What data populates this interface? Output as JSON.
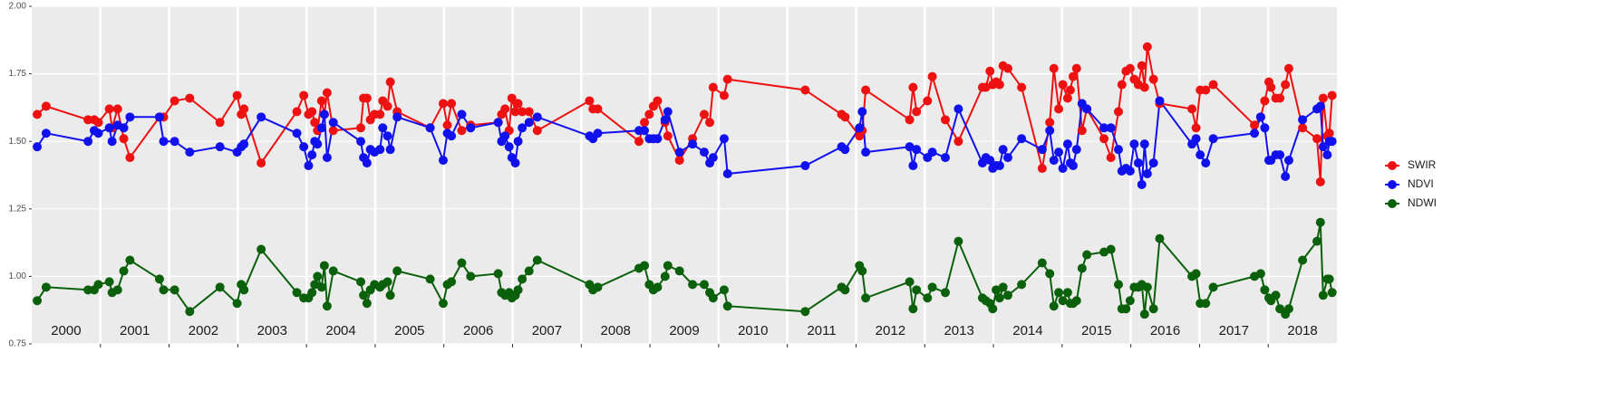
{
  "chart_data": {
    "type": "line",
    "x": [
      2000.08,
      2000.21,
      2000.82,
      2000.91,
      2000.97,
      2001.13,
      2001.17,
      2001.25,
      2001.34,
      2001.43,
      2001.86,
      2001.92,
      2002.08,
      2002.3,
      2002.74,
      2002.99,
      2003.05,
      2003.09,
      2003.34,
      2003.86,
      2003.96,
      2004.03,
      2004.08,
      2004.12,
      2004.16,
      2004.22,
      2004.26,
      2004.3,
      2004.39,
      2004.79,
      2004.83,
      2004.88,
      2004.93,
      2004.99,
      2005.07,
      2005.11,
      2005.18,
      2005.22,
      2005.32,
      2005.8,
      2005.99,
      2006.05,
      2006.11,
      2006.26,
      2006.39,
      2006.79,
      2006.84,
      2006.89,
      2006.95,
      2006.99,
      2007.04,
      2007.08,
      2007.14,
      2007.24,
      2007.36,
      2008.12,
      2008.17,
      2008.24,
      2008.84,
      2008.92,
      2008.99,
      2009.05,
      2009.11,
      2009.22,
      2009.26,
      2009.43,
      2009.62,
      2009.79,
      2009.87,
      2009.92,
      2010.08,
      2010.13,
      2011.26,
      2011.79,
      2011.84,
      2012.05,
      2012.09,
      2012.14,
      2012.78,
      2012.83,
      2012.88,
      2013.04,
      2013.11,
      2013.3,
      2013.49,
      2013.84,
      2013.89,
      2013.95,
      2013.99,
      2014.04,
      2014.09,
      2014.14,
      2014.21,
      2014.41,
      2014.71,
      2014.82,
      2014.88,
      2014.95,
      2015.01,
      2015.08,
      2015.12,
      2015.16,
      2015.21,
      2015.29,
      2015.36,
      2015.61,
      2015.71,
      2015.82,
      2015.87,
      2015.93,
      2015.99,
      2016.05,
      2016.11,
      2016.16,
      2016.2,
      2016.24,
      2016.33,
      2016.42,
      2016.89,
      2016.95,
      2017.01,
      2017.09,
      2017.2,
      2017.8,
      2017.89,
      2017.95,
      2018.01,
      2018.04,
      2018.11,
      2018.17,
      2018.25,
      2018.3,
      2018.5,
      2018.71,
      2018.76,
      2018.8,
      2018.86,
      2018.89,
      2018.93
    ],
    "series": [
      {
        "name": "SWIR",
        "color": "#ee1111",
        "values": [
          1.6,
          1.63,
          1.58,
          1.58,
          1.57,
          1.62,
          1.55,
          1.62,
          1.51,
          1.44,
          1.59,
          1.59,
          1.65,
          1.66,
          1.57,
          1.67,
          1.6,
          1.62,
          1.42,
          1.61,
          1.67,
          1.6,
          1.61,
          1.57,
          1.54,
          1.65,
          1.6,
          1.68,
          1.54,
          1.55,
          1.66,
          1.66,
          1.58,
          1.6,
          1.6,
          1.65,
          1.63,
          1.72,
          1.61,
          1.55,
          1.64,
          1.56,
          1.64,
          1.54,
          1.56,
          1.57,
          1.6,
          1.62,
          1.54,
          1.66,
          1.61,
          1.64,
          1.61,
          1.61,
          1.54,
          1.65,
          1.62,
          1.62,
          1.5,
          1.57,
          1.6,
          1.63,
          1.65,
          1.57,
          1.52,
          1.43,
          1.51,
          1.6,
          1.57,
          1.7,
          1.67,
          1.73,
          1.69,
          1.6,
          1.59,
          1.52,
          1.54,
          1.69,
          1.58,
          1.7,
          1.61,
          1.65,
          1.74,
          1.58,
          1.5,
          1.7,
          1.7,
          1.76,
          1.71,
          1.72,
          1.71,
          1.78,
          1.77,
          1.7,
          1.4,
          1.57,
          1.77,
          1.62,
          1.71,
          1.66,
          1.69,
          1.74,
          1.77,
          1.54,
          1.62,
          1.51,
          1.44,
          1.61,
          1.71,
          1.76,
          1.77,
          1.73,
          1.71,
          1.78,
          1.7,
          1.85,
          1.73,
          1.64,
          1.62,
          1.55,
          1.69,
          1.69,
          1.71,
          1.56,
          1.59,
          1.65,
          1.72,
          1.7,
          1.66,
          1.66,
          1.71,
          1.77,
          1.55,
          1.51,
          1.35,
          1.66,
          1.52,
          1.53,
          1.67
        ]
      },
      {
        "name": "NDVI",
        "color": "#1111ee",
        "values": [
          1.48,
          1.53,
          1.5,
          1.54,
          1.53,
          1.55,
          1.5,
          1.56,
          1.55,
          1.59,
          1.59,
          1.5,
          1.5,
          1.46,
          1.48,
          1.46,
          1.48,
          1.49,
          1.59,
          1.53,
          1.48,
          1.41,
          1.45,
          1.5,
          1.49,
          1.55,
          1.6,
          1.44,
          1.57,
          1.5,
          1.44,
          1.42,
          1.47,
          1.46,
          1.47,
          1.55,
          1.52,
          1.47,
          1.59,
          1.55,
          1.43,
          1.53,
          1.52,
          1.6,
          1.55,
          1.57,
          1.5,
          1.52,
          1.48,
          1.44,
          1.42,
          1.5,
          1.55,
          1.57,
          1.59,
          1.52,
          1.51,
          1.53,
          1.54,
          1.54,
          1.51,
          1.51,
          1.51,
          1.58,
          1.61,
          1.46,
          1.49,
          1.46,
          1.42,
          1.44,
          1.51,
          1.38,
          1.41,
          1.48,
          1.47,
          1.55,
          1.61,
          1.46,
          1.48,
          1.41,
          1.47,
          1.44,
          1.46,
          1.44,
          1.62,
          1.42,
          1.44,
          1.43,
          1.4,
          1.41,
          1.41,
          1.47,
          1.44,
          1.51,
          1.47,
          1.54,
          1.43,
          1.46,
          1.4,
          1.49,
          1.42,
          1.41,
          1.47,
          1.64,
          1.62,
          1.55,
          1.55,
          1.47,
          1.39,
          1.4,
          1.39,
          1.49,
          1.42,
          1.34,
          1.49,
          1.38,
          1.42,
          1.65,
          1.49,
          1.51,
          1.45,
          1.42,
          1.51,
          1.53,
          1.59,
          1.55,
          1.43,
          1.43,
          1.45,
          1.45,
          1.37,
          1.43,
          1.58,
          1.62,
          1.63,
          1.48,
          1.45,
          1.5,
          1.5
        ]
      },
      {
        "name": "NDWI",
        "color": "#0b600b",
        "values": [
          0.91,
          0.96,
          0.95,
          0.95,
          0.97,
          0.98,
          0.94,
          0.95,
          1.02,
          1.06,
          0.99,
          0.95,
          0.95,
          0.87,
          0.96,
          0.9,
          0.97,
          0.95,
          1.1,
          0.94,
          0.92,
          0.92,
          0.94,
          0.97,
          1.0,
          0.96,
          1.04,
          0.89,
          1.02,
          0.98,
          0.93,
          0.9,
          0.95,
          0.97,
          0.96,
          0.97,
          0.98,
          0.93,
          1.02,
          0.99,
          0.9,
          0.97,
          0.98,
          1.05,
          1.0,
          1.01,
          0.94,
          0.93,
          0.94,
          0.92,
          0.93,
          0.95,
          0.99,
          1.02,
          1.06,
          0.97,
          0.95,
          0.96,
          1.03,
          1.04,
          0.97,
          0.95,
          0.96,
          1.0,
          1.04,
          1.02,
          0.97,
          0.97,
          0.94,
          0.92,
          0.95,
          0.89,
          0.87,
          0.96,
          0.95,
          1.04,
          1.02,
          0.92,
          0.98,
          0.88,
          0.95,
          0.92,
          0.96,
          0.94,
          1.13,
          0.92,
          0.91,
          0.9,
          0.88,
          0.95,
          0.92,
          0.96,
          0.93,
          0.97,
          1.05,
          1.01,
          0.89,
          0.94,
          0.91,
          0.94,
          0.9,
          0.9,
          0.91,
          1.03,
          1.08,
          1.09,
          1.1,
          0.97,
          0.88,
          0.88,
          0.91,
          0.96,
          0.96,
          0.97,
          0.86,
          0.96,
          0.88,
          1.14,
          1.0,
          1.01,
          0.9,
          0.9,
          0.96,
          1.0,
          1.01,
          0.95,
          0.92,
          0.91,
          0.93,
          0.88,
          0.86,
          0.88,
          1.06,
          1.13,
          1.2,
          0.93,
          0.99,
          0.99,
          0.94
        ]
      }
    ],
    "xlim": [
      2000,
      2019
    ],
    "xticks": [
      2001,
      2002,
      2003,
      2004,
      2005,
      2006,
      2007,
      2008,
      2009,
      2010,
      2011,
      2012,
      2013,
      2014,
      2015,
      2016,
      2017,
      2018
    ],
    "year_labels": [
      "2000",
      "2001",
      "2002",
      "2003",
      "2004",
      "2005",
      "2006",
      "2007",
      "2008",
      "2009",
      "2010",
      "2011",
      "2012",
      "2013",
      "2014",
      "2015",
      "2016",
      "2017",
      "2018"
    ],
    "ylim": [
      0.75,
      2.0
    ],
    "yticks": [
      0.75,
      {
        "value": 1.0,
        "label": "1.00"
      },
      1.25,
      {
        "value": 1.5,
        "label": "1.50"
      },
      1.75,
      {
        "value": 2.0,
        "label": "2.00"
      }
    ],
    "grid": true
  }
}
